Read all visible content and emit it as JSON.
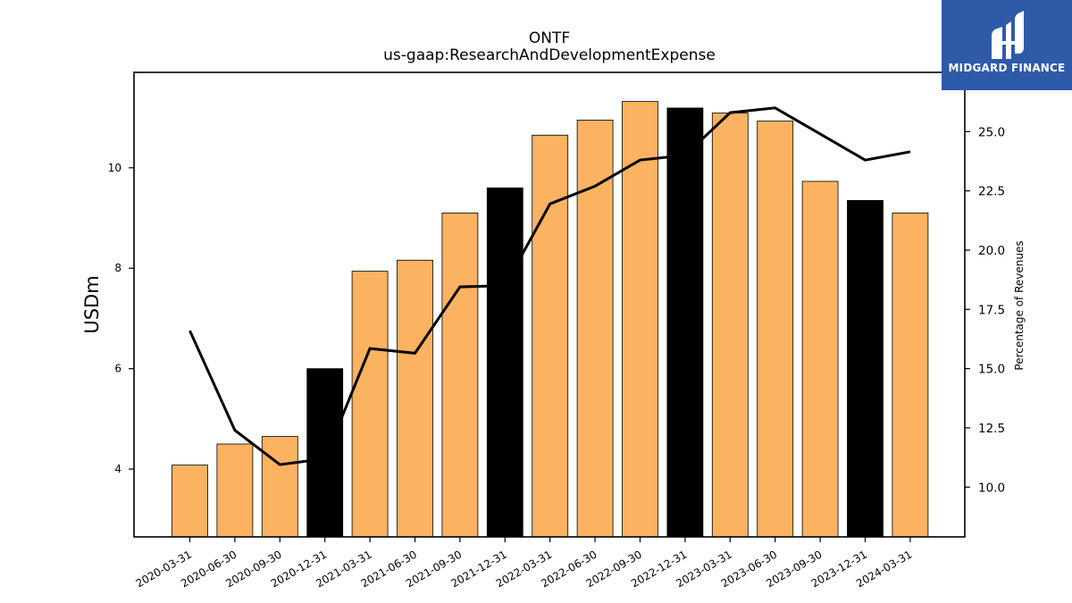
{
  "chart_data": {
    "type": "bar",
    "title": "ONTF",
    "subtitle": "us-gaap:ResearchAndDevelopmentExpense",
    "ylabel": "USDm",
    "y2label": "Percentage of Revenues",
    "categories": [
      "2020-03-31",
      "2020-06-30",
      "2020-09-30",
      "2020-12-31",
      "2021-03-31",
      "2021-06-30",
      "2021-09-30",
      "2021-12-31",
      "2022-03-31",
      "2022-06-30",
      "2022-09-30",
      "2022-12-31",
      "2023-03-31",
      "2023-06-30",
      "2023-09-30",
      "2023-12-31",
      "2024-03-31"
    ],
    "series": [
      {
        "values": [
          4.08,
          4.5,
          4.65,
          6.0,
          7.94,
          8.16,
          9.1,
          9.6,
          10.65,
          10.95,
          11.32,
          11.19,
          11.09,
          10.93,
          9.73,
          9.35,
          9.1
        ],
        "axis": "left"
      },
      {
        "values": [
          16.6,
          12.4,
          10.95,
          11.2,
          15.85,
          15.65,
          18.45,
          18.5,
          21.95,
          22.7,
          23.8,
          24.0,
          25.8,
          26.0,
          24.9,
          23.8,
          24.15
        ],
        "axis": "right"
      }
    ],
    "highlight_indices": [
      3,
      7,
      11,
      15
    ],
    "ylim": [
      2.65,
      11.9
    ],
    "yticks": [
      4,
      6,
      8,
      10
    ],
    "y2lim": [
      7.9,
      27.5
    ],
    "y2ticks": [
      "10.0",
      "12.5",
      "15.0",
      "17.5",
      "20.0",
      "22.5",
      "25.0"
    ],
    "grid": false,
    "colors": {
      "bar": "#fbb261",
      "highlight": "#000000",
      "line": "#000000"
    }
  },
  "logo": {
    "text": "MIDGARD FINANCE"
  }
}
